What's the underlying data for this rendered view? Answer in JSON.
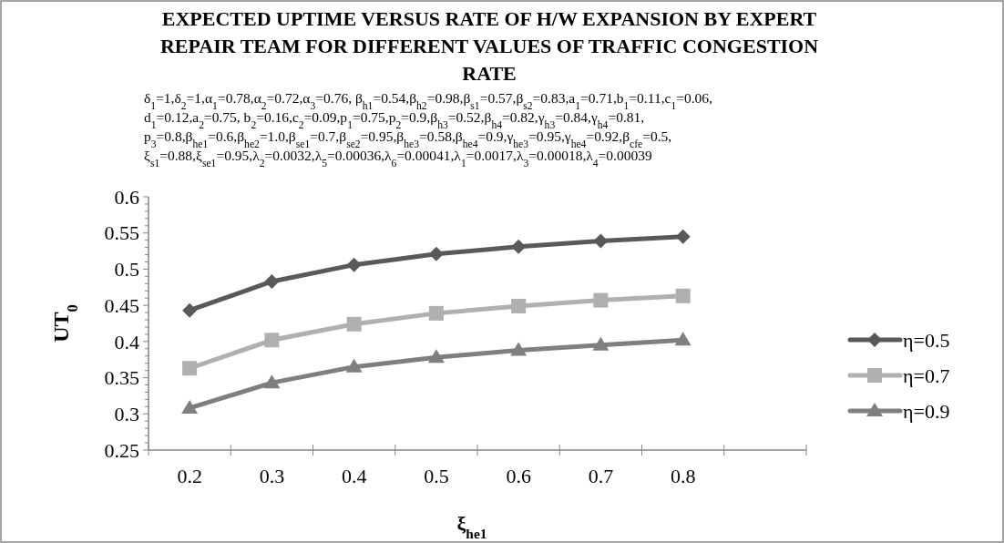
{
  "chart_data": {
    "type": "line",
    "title": "EXPECTED UPTIME VERSUS RATE OF H/W EXPANSION BY EXPERT REPAIR TEAM FOR DIFFERENT  VALUES OF TRAFFIC CONGESTION RATE",
    "annotations": [
      "δ$_{1}$=1,δ$_{2}$=1,α$_{1}$=0.78,α$_{2}$=0.72,α$_{3}$=0.76, β$_{h1}$=0.54,β$_{h2}$=0.98,β$_{s1}$=0.57,β$_{s2}$=0.83,a$_{1}$=0.71,b$_{1}$=0.11,c$_{1}$=0.06,",
      "d$_{1}$=0.12,a$_{2}$=0.75, b$_{2}$=0.16,c$_{2}$=0.09,p$_{1}$=0.75,p$_{2}$=0.9,β$_{h3}$=0.52,β$_{h4}$=0.82,γ$_{h3}$=0.84,γ$_{h4}$=0.81,",
      "p$_{3}$=0.8,β$_{he1}$=0.6,β$_{he2}$=1.0,β$_{se1}$=0.7,β$_{se2}$=0.95,β$_{he3}$=0.58,β$_{he4}$=0.9,γ$_{he3}$=0.95,γ$_{he4}$=0.92,β$_{cfe}$=0.5,",
      "ξ$_{s1}$=0.88,ξ$_{se1}$=0.95,λ$_{2}$=0.0032,λ$_{5}$=0.00036,λ$_{6}$=0.00041,λ$_{1}$=0.0017,λ$_{3}$=0.00018,λ$_{4}$=0.00039"
    ],
    "xlabel": "ξ$_{he1}$",
    "ylabel": "UT$_{0}$",
    "categories": [
      "0.2",
      "0.3",
      "0.4",
      "0.5",
      "0.6",
      "0.7",
      "0.8",
      null
    ],
    "series": [
      {
        "name": "η=0.5",
        "color": "#595959",
        "marker": "diamond",
        "values": [
          0.443,
          0.483,
          0.506,
          0.521,
          0.531,
          0.539,
          0.545,
          null
        ]
      },
      {
        "name": "η=0.7",
        "color": "#b0b0b0",
        "marker": "square",
        "values": [
          0.363,
          0.402,
          0.424,
          0.439,
          0.449,
          0.457,
          0.463,
          null
        ]
      },
      {
        "name": "η=0.9",
        "color": "#7f7f7f",
        "marker": "triangle",
        "values": [
          0.308,
          0.343,
          0.365,
          0.378,
          0.388,
          0.395,
          0.402,
          null
        ]
      }
    ],
    "ylim": [
      0.25,
      0.6
    ],
    "yticks": [
      0.25,
      {
        "value": 0.26,
        "label": null
      },
      {
        "value": 0.27,
        "label": null
      },
      {
        "value": 0.28,
        "label": null
      },
      {
        "value": 0.29,
        "label": null
      },
      0.3,
      {
        "value": 0.31,
        "label": null
      },
      {
        "value": 0.32,
        "label": null
      },
      {
        "value": 0.33,
        "label": null
      },
      {
        "value": 0.34,
        "label": null
      },
      0.35,
      {
        "value": 0.36,
        "label": null
      },
      {
        "value": 0.37,
        "label": null
      },
      {
        "value": 0.38,
        "label": null
      },
      {
        "value": 0.39,
        "label": null
      },
      0.4,
      {
        "value": 0.41,
        "label": null
      },
      {
        "value": 0.42,
        "label": null
      },
      {
        "value": 0.43,
        "label": null
      },
      {
        "value": 0.44,
        "label": null
      },
      0.45,
      {
        "value": 0.46,
        "label": null
      },
      {
        "value": 0.47,
        "label": null
      },
      {
        "value": 0.48,
        "label": null
      },
      {
        "value": 0.49,
        "label": null
      },
      0.5,
      {
        "value": 0.51,
        "label": null
      },
      {
        "value": 0.52,
        "label": null
      },
      {
        "value": 0.53,
        "label": null
      },
      {
        "value": 0.54,
        "label": null
      },
      0.55,
      {
        "value": 0.56,
        "label": null
      },
      {
        "value": 0.57,
        "label": null
      },
      {
        "value": 0.58,
        "label": null
      },
      {
        "value": 0.59,
        "label": null
      },
      0.6
    ],
    "grid": false,
    "legend": "right",
    "line_style": "solid"
  }
}
